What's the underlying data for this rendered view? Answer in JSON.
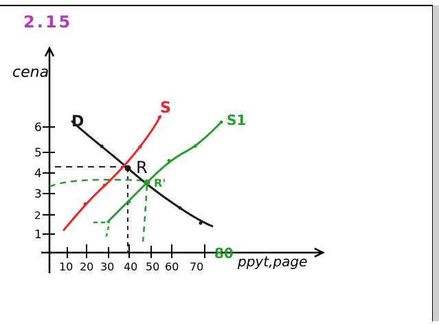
{
  "header": {
    "title": "2.15"
  },
  "axes": {
    "y_label": "cena",
    "x_label": "ppyt,page",
    "y_ticks": [
      "6",
      "5",
      "4",
      "3",
      "2",
      "1"
    ],
    "x_ticks": [
      "10",
      "20",
      "30",
      "40",
      "50",
      "60",
      "70"
    ]
  },
  "curves": {
    "demand_label": "D",
    "supply_label": "S",
    "supply_new_label": "S1",
    "equilibrium_label": "R",
    "equilibrium_new_label": "R'",
    "annotation": "80"
  },
  "colors": {
    "title": "#b03cc0",
    "supply": "#ee2222",
    "supply_new": "#22a02a",
    "demand": "#1a1a1a",
    "guides_black": "#222222",
    "guides_green": "#22a02a"
  }
}
